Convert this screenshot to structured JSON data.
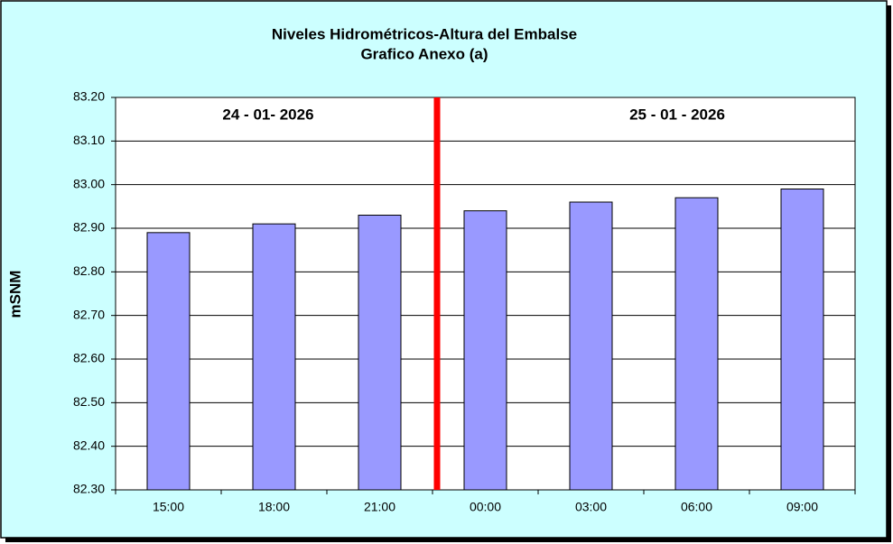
{
  "chart_data": {
    "type": "bar",
    "title": "Niveles Hidrométricos-Altura del Embalse",
    "subtitle": "Grafico Anexo (a)",
    "y_label": "mSNM",
    "annotations": [
      "24 - 01- 2026",
      "25 - 01 - 2026"
    ],
    "categories": [
      "15:00",
      "18:00",
      "21:00",
      "00:00",
      "03:00",
      "06:00",
      "09:00"
    ],
    "values": [
      82.89,
      82.91,
      82.93,
      82.94,
      82.96,
      82.97,
      82.99
    ],
    "color": "#9999ff",
    "ylim": [
      82.3,
      83.2
    ],
    "yticks": [
      {
        "value": 82.3,
        "label": "82.30"
      },
      {
        "value": 82.4,
        "label": "82.40"
      },
      {
        "value": 82.5,
        "label": "82.50"
      },
      {
        "value": 82.6,
        "label": "82.60"
      },
      {
        "value": 82.7,
        "label": "82.70"
      },
      {
        "value": 82.8,
        "label": "82.80"
      },
      {
        "value": 82.9,
        "label": "82.90"
      },
      {
        "value": 83.0,
        "label": "83.00"
      },
      {
        "value": 83.1,
        "label": "83.10"
      },
      {
        "value": 83.2,
        "label": "83.20"
      }
    ],
    "grid": true
  }
}
